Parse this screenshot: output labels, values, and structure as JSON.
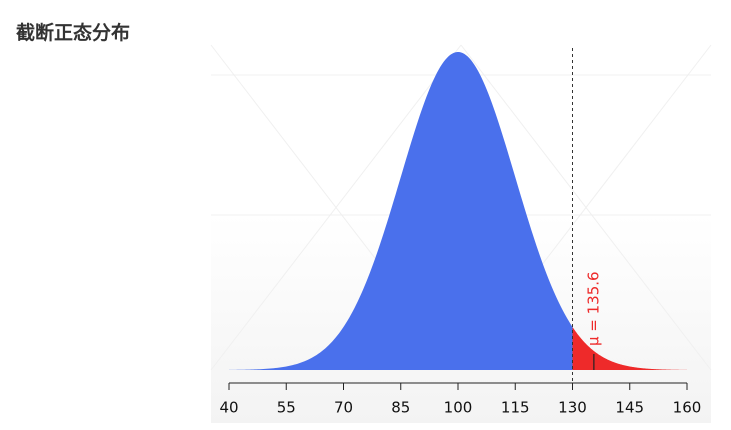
{
  "header": {
    "title": "截断正态分布"
  },
  "chart_data": {
    "type": "density",
    "mean": 100,
    "sd": 15,
    "truncate_at": 130,
    "main_color": "#4a70ec",
    "tail_color": "#ee2a2a",
    "annotation": {
      "label": "μ = 135.6",
      "value": 135.6
    },
    "xlim": [
      40,
      160
    ],
    "xticks": [
      40,
      55,
      70,
      85,
      100,
      115,
      130,
      145,
      160
    ]
  }
}
